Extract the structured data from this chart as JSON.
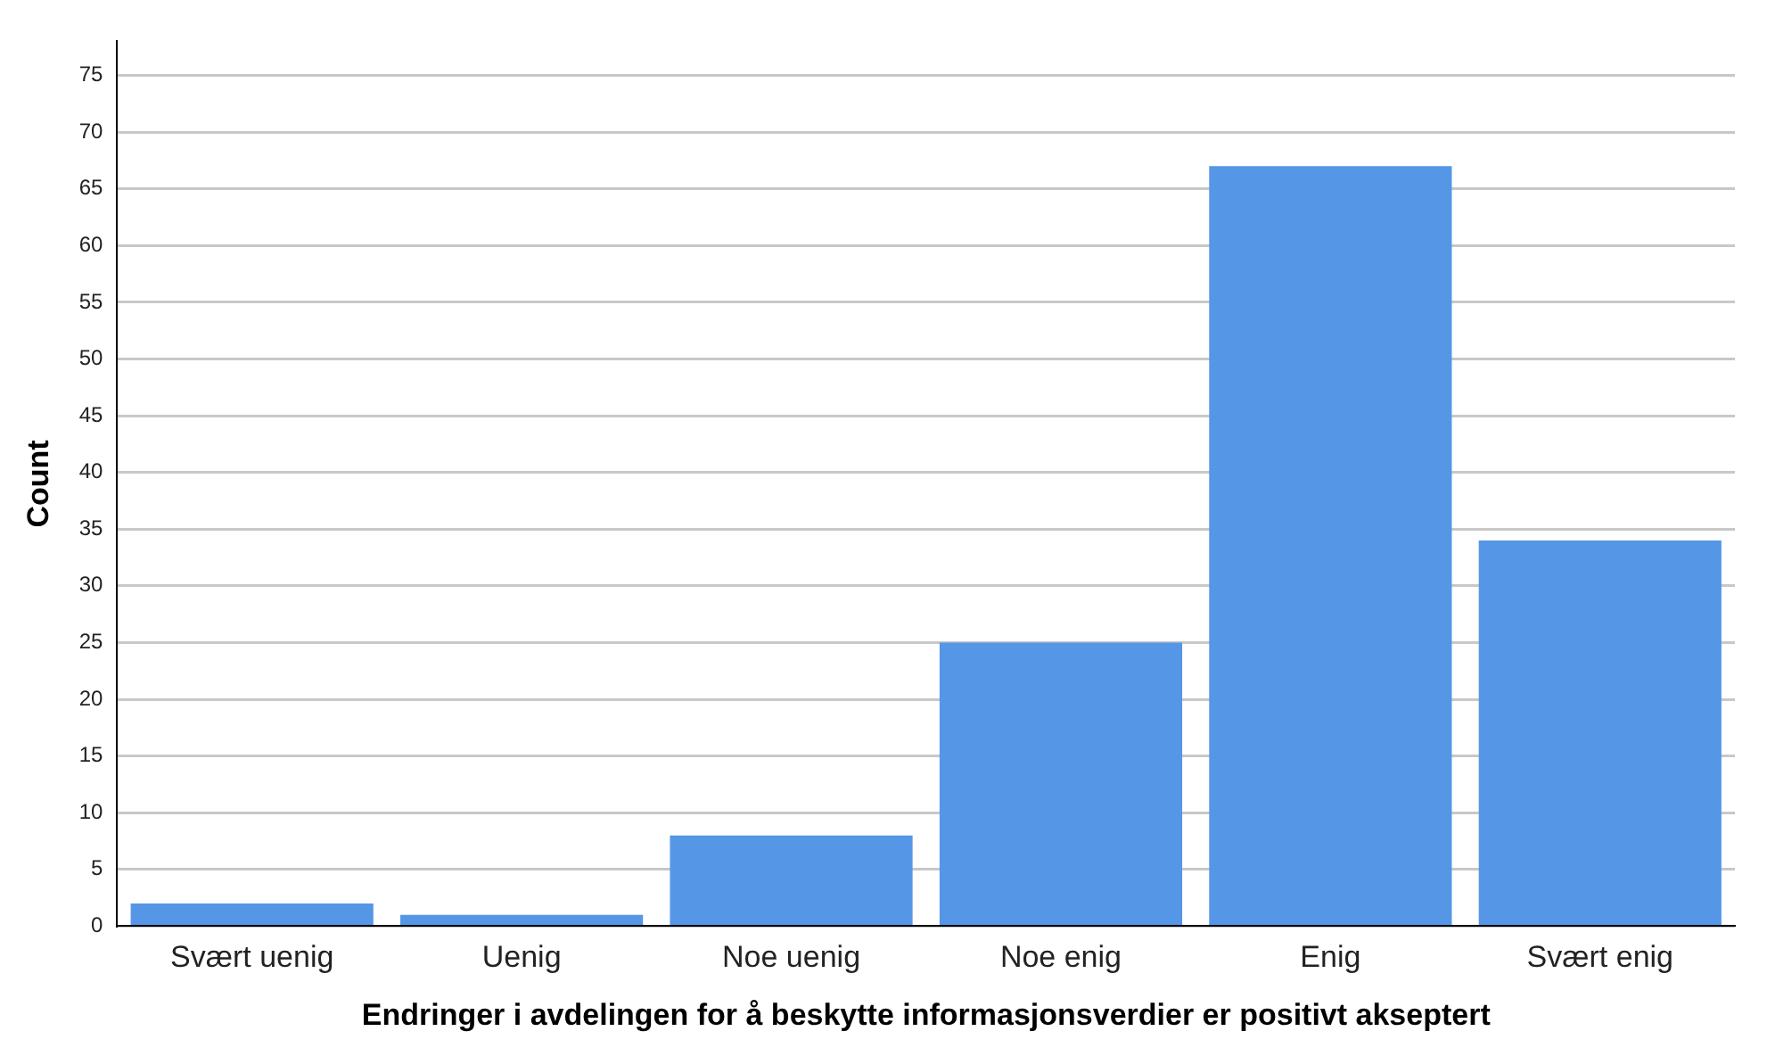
{
  "chart_data": {
    "type": "bar",
    "xlabel": "Endringer i avdelingen for å beskytte informasjonsverdier er positivt akseptert",
    "ylabel": "Count",
    "categories": [
      "Svært uenig",
      "Uenig",
      "Noe uenig",
      "Noe enig",
      "Enig",
      "Svært enig"
    ],
    "values": [
      2,
      1,
      8,
      25,
      67,
      34
    ],
    "color": "#5596e6",
    "ylim": [
      0,
      78
    ],
    "yticks": [
      0,
      5,
      10,
      15,
      20,
      25,
      30,
      35,
      40,
      45,
      50,
      55,
      60,
      65,
      70,
      75
    ],
    "grid": "y"
  }
}
